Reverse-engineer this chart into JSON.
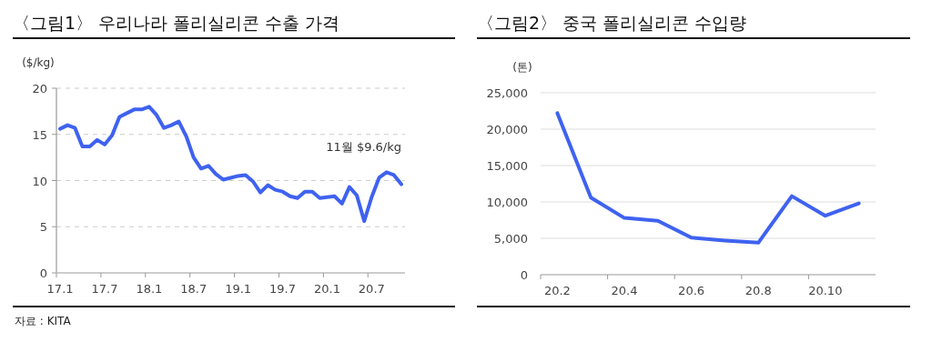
{
  "chart_data": [
    {
      "type": "line",
      "title": "〈그림1〉 우리나라 폴리실리콘 수출 가격",
      "ylabel": "($/kg)",
      "categories": [
        "17.1",
        null,
        null,
        null,
        null,
        null,
        "17.7",
        null,
        null,
        null,
        null,
        null,
        "18.1",
        null,
        null,
        null,
        null,
        null,
        "18.7",
        null,
        null,
        null,
        null,
        null,
        "19.1",
        null,
        null,
        null,
        null,
        null,
        "19.7",
        null,
        null,
        null,
        null,
        null,
        "20.1",
        null,
        null,
        null,
        null,
        null,
        "20.7",
        null,
        null,
        null,
        null
      ],
      "series": [
        {
          "color": "#3f62f0",
          "values": [
            15.6,
            16.0,
            15.7,
            13.7,
            13.7,
            14.4,
            13.9,
            14.9,
            16.9,
            17.3,
            17.7,
            17.7,
            18.0,
            17.1,
            15.7,
            16.0,
            16.4,
            14.8,
            12.5,
            11.3,
            11.6,
            10.7,
            10.1,
            10.3,
            10.5,
            10.6,
            9.9,
            8.7,
            9.5,
            9.0,
            8.8,
            8.3,
            8.1,
            8.8,
            8.8,
            8.1,
            8.2,
            8.3,
            7.5,
            9.3,
            8.4,
            5.6,
            8.2,
            10.3,
            10.9,
            10.6,
            9.6
          ]
        }
      ],
      "ylim": [
        0,
        20
      ],
      "yticks": [
        0,
        5,
        10,
        15,
        20
      ],
      "grid": "y",
      "marker": "none",
      "line_style": "solid",
      "annotations": [
        "11월  $9.6/kg",
        "자료 : KITA"
      ]
    },
    {
      "type": "line",
      "title": "〈그림2〉 중국 폴리실리콘 수입량",
      "ylabel": "(톤)",
      "categories": [
        "20.2",
        null,
        "20.4",
        null,
        "20.6",
        null,
        "20.8",
        null,
        "20.10",
        null
      ],
      "series": [
        {
          "color": "#3f62f0",
          "values": [
            22200,
            10600,
            7800,
            7400,
            5100,
            4700,
            4400,
            10800,
            8100,
            9800
          ]
        }
      ],
      "ylim": [
        0,
        25000
      ],
      "yticks": [
        {
          "value": 0,
          "label": "0"
        },
        {
          "value": 5000,
          "label": "5,000"
        },
        {
          "value": 10000,
          "label": "10,000"
        },
        {
          "value": 15000,
          "label": "15,000"
        },
        {
          "value": 20000,
          "label": "20,000"
        },
        {
          "value": 25000,
          "label": "25,000"
        }
      ],
      "grid": "y",
      "marker": "none",
      "line_style": "solid"
    }
  ]
}
